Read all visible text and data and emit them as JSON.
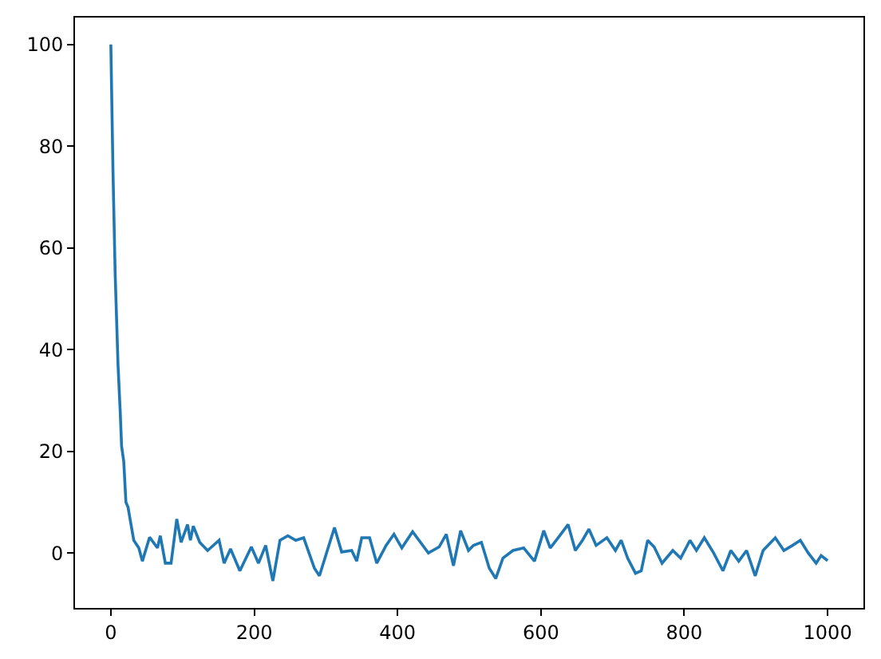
{
  "chart_data": {
    "type": "line",
    "x": [
      0,
      3,
      6,
      10,
      13,
      15,
      18,
      21,
      24,
      28,
      32,
      39,
      44,
      54,
      65,
      69,
      76,
      84,
      92,
      98,
      107,
      111,
      115,
      124,
      135,
      151,
      158,
      167,
      180,
      196,
      206,
      216,
      226,
      236,
      247,
      258,
      269,
      284,
      291,
      302,
      312,
      322,
      336,
      343,
      350,
      361,
      371,
      384,
      395,
      406,
      421,
      432,
      443,
      458,
      468,
      478,
      488,
      499,
      506,
      517,
      528,
      537,
      547,
      561,
      576,
      591,
      604,
      613,
      624,
      638,
      648,
      658,
      667,
      677,
      692,
      704,
      712,
      721,
      732,
      740,
      749,
      758,
      769,
      784,
      795,
      808,
      817,
      828,
      841,
      854,
      865,
      876,
      887,
      899,
      910,
      927,
      939,
      951,
      962,
      973,
      984,
      991,
      1000
    ],
    "series": [
      {
        "color": "#1f77b4",
        "values": [
          100,
          75,
          55,
          37,
          28,
          21,
          18,
          10,
          9,
          5.7,
          2.5,
          1,
          -1.6,
          3.1,
          1,
          3.4,
          -2,
          -2,
          6.7,
          2.1,
          5.6,
          2.5,
          5.3,
          2.1,
          0.5,
          2.5,
          -2,
          0.8,
          -3.5,
          1.2,
          -2,
          1.5,
          -5.5,
          2.5,
          3.4,
          2.5,
          3,
          -3,
          -4.5,
          0.5,
          5,
          0.2,
          0.5,
          -1.6,
          3,
          3,
          -2,
          1.5,
          3.7,
          1,
          4.2,
          2.1,
          0,
          1.2,
          3.7,
          -2.5,
          4.4,
          0.5,
          1.5,
          2.1,
          -3,
          -5,
          -1,
          0.5,
          1,
          -1.6,
          4.4,
          1,
          3,
          5.6,
          0.5,
          2.5,
          4.7,
          1.5,
          3,
          0.5,
          2.5,
          -1,
          -4,
          -3.5,
          2.5,
          1.2,
          -2,
          0.5,
          -1,
          2.5,
          0.5,
          3,
          0,
          -3.5,
          0.5,
          -1.6,
          0.5,
          -4.5,
          0.5,
          3,
          0.5,
          1.5,
          2.5,
          0,
          -2,
          -0.5,
          -1.5
        ]
      }
    ],
    "xlim": [
      -50,
      1050
    ],
    "xticks": [
      0,
      200,
      400,
      600,
      800,
      1000
    ],
    "ylim": [
      -10.8,
      105.3
    ],
    "yticks": [
      0,
      20,
      40,
      60,
      80,
      100
    ],
    "marker": "none",
    "line_style": "solid"
  }
}
